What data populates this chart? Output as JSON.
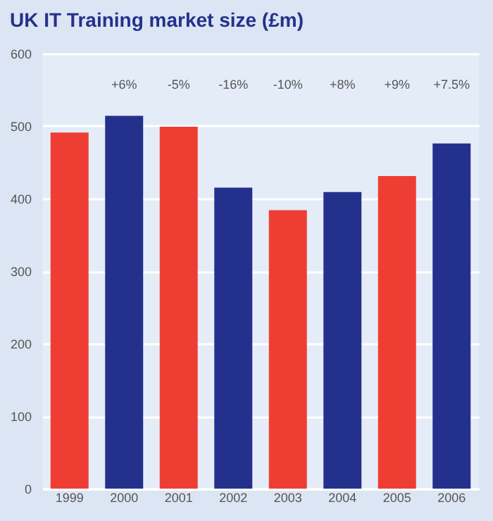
{
  "chart_data": {
    "type": "bar",
    "title": "UK IT Training market size (£m)",
    "categories": [
      "1999",
      "2000",
      "2001",
      "2002",
      "2003",
      "2004",
      "2005",
      "2006"
    ],
    "values": [
      491,
      514,
      499,
      415,
      384,
      409,
      431,
      476
    ],
    "colors": [
      "#ee3e33",
      "#24318c",
      "#ee3e33",
      "#24318c",
      "#ee3e33",
      "#24318c",
      "#ee3e33",
      "#24318c"
    ],
    "ylim": [
      0,
      600
    ],
    "yticks": [
      0,
      100,
      200,
      300,
      400,
      500,
      600
    ],
    "grid": "y",
    "annotations": [
      "+6%",
      "-5%",
      "-16%",
      "-10%",
      "+8%",
      "+9%",
      "+7.5%"
    ]
  }
}
